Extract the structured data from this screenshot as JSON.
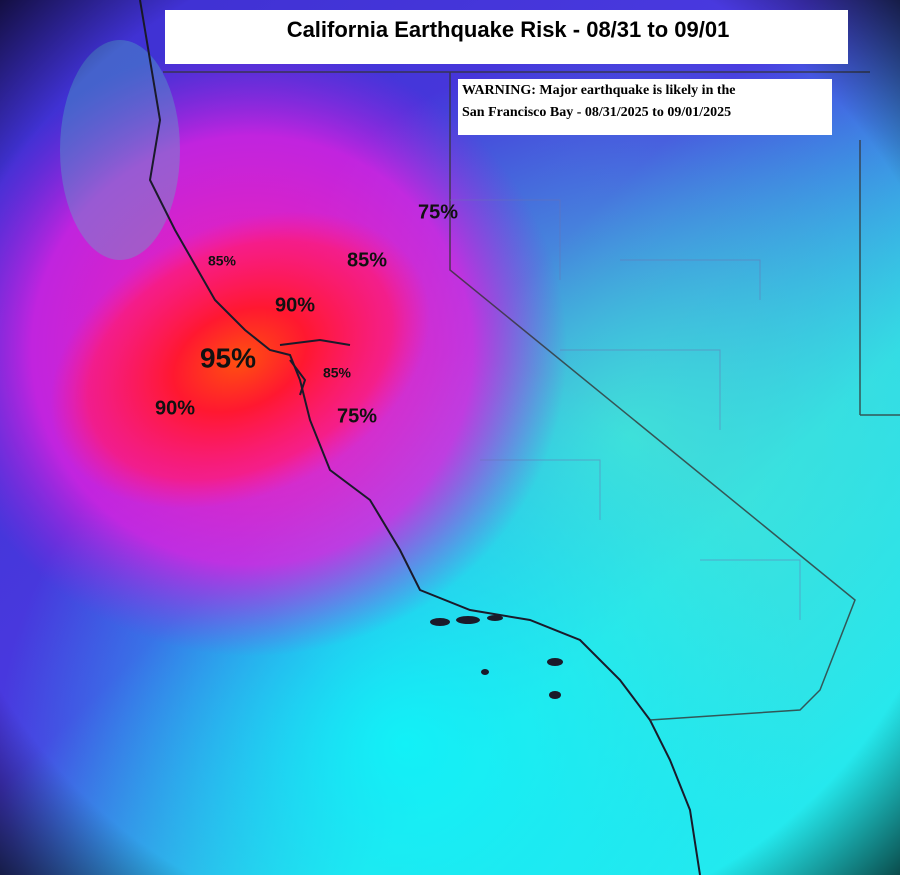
{
  "header": {
    "title": "California Earthquake Risk - 08/31 to 09/01"
  },
  "warning": {
    "lines": [
      "WARNING: Major earthquake is likely in the",
      "San Francisco Bay - 08/31/2025 to 09/01/2025"
    ]
  },
  "map_labels": [
    "75%",
    "85%",
    "85%",
    "90%",
    "95%",
    "85%",
    "90%",
    "75%"
  ]
}
